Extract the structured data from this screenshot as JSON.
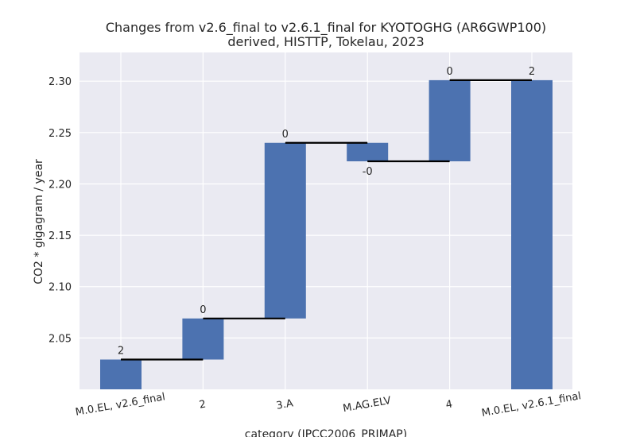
{
  "chart_data": {
    "type": "bar",
    "subtype": "waterfall",
    "title": "Changes from v2.6_final to v2.6.1_final for KYOTOGHG (AR6GWP100)",
    "subtitle": "derived, HISTTP, Tokelau, 2023",
    "xlabel": "category (IPCC2006_PRIMAP)",
    "ylabel": "CO2 * gigagram / year",
    "ylim": [
      2.0,
      2.328
    ],
    "yticks": [
      "2.05",
      "2.10",
      "2.15",
      "2.20",
      "2.25",
      "2.30"
    ],
    "grid": true,
    "categories": [
      "M.0.EL, v2.6_final",
      "2",
      "3.A",
      "M.AG.ELV",
      "4",
      "M.0.EL, v2.6.1_final"
    ],
    "bars": [
      {
        "bottom": 2.0,
        "top": 2.029,
        "label": "2"
      },
      {
        "bottom": 2.029,
        "top": 2.069,
        "label": "0"
      },
      {
        "bottom": 2.069,
        "top": 2.24,
        "label": "0"
      },
      {
        "bottom": 2.222,
        "top": 2.24,
        "label": "-0"
      },
      {
        "bottom": 2.222,
        "top": 2.301,
        "label": "0"
      },
      {
        "bottom": 2.0,
        "top": 2.301,
        "label": "2"
      }
    ],
    "connectors": [
      2.029,
      2.069,
      2.24,
      2.222,
      2.301
    ],
    "colors": {
      "bar": "#4c72b0",
      "background": "#eaeaf2",
      "grid": "#ffffff",
      "connector": "#000000"
    }
  }
}
